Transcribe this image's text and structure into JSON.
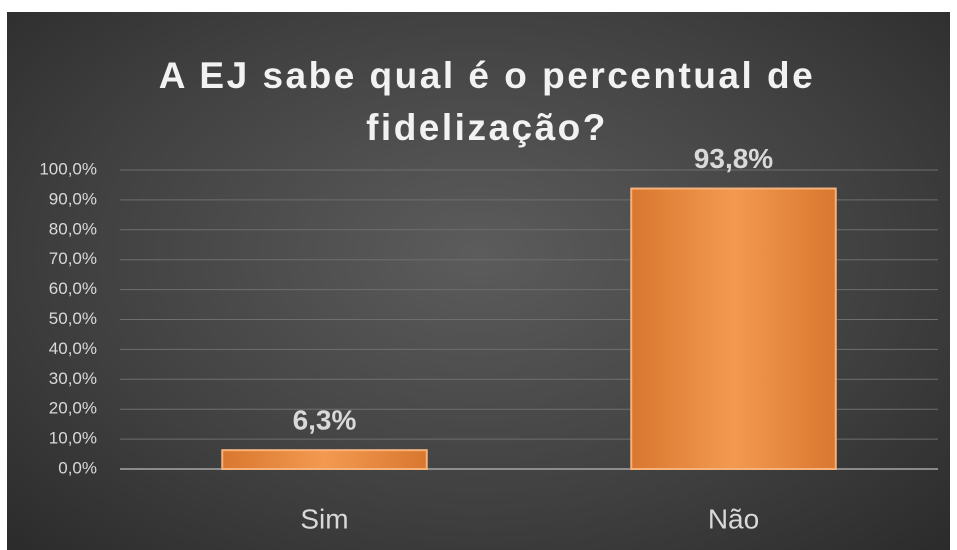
{
  "chart_data": {
    "type": "bar",
    "title": "A EJ sabe qual é o percentual de fidelização?",
    "categories": [
      "Sim",
      "Não"
    ],
    "values": [
      6.3,
      93.8
    ],
    "value_labels": [
      "6,3%",
      "93,8%"
    ],
    "color": "#ee9146",
    "ylim": [
      0,
      100
    ],
    "yticks": [
      {
        "value": 0,
        "label": "0,0%"
      },
      {
        "value": 10,
        "label": "10,0%"
      },
      {
        "value": 20,
        "label": "20,0%"
      },
      {
        "value": 30,
        "label": "30,0%"
      },
      {
        "value": 40,
        "label": "40,0%"
      },
      {
        "value": 50,
        "label": "50,0%"
      },
      {
        "value": 60,
        "label": "60,0%"
      },
      {
        "value": 70,
        "label": "70,0%"
      },
      {
        "value": 80,
        "label": "80,0%"
      },
      {
        "value": 90,
        "label": "90,0%"
      },
      {
        "value": 100,
        "label": "100,0%"
      }
    ],
    "grid": true
  }
}
